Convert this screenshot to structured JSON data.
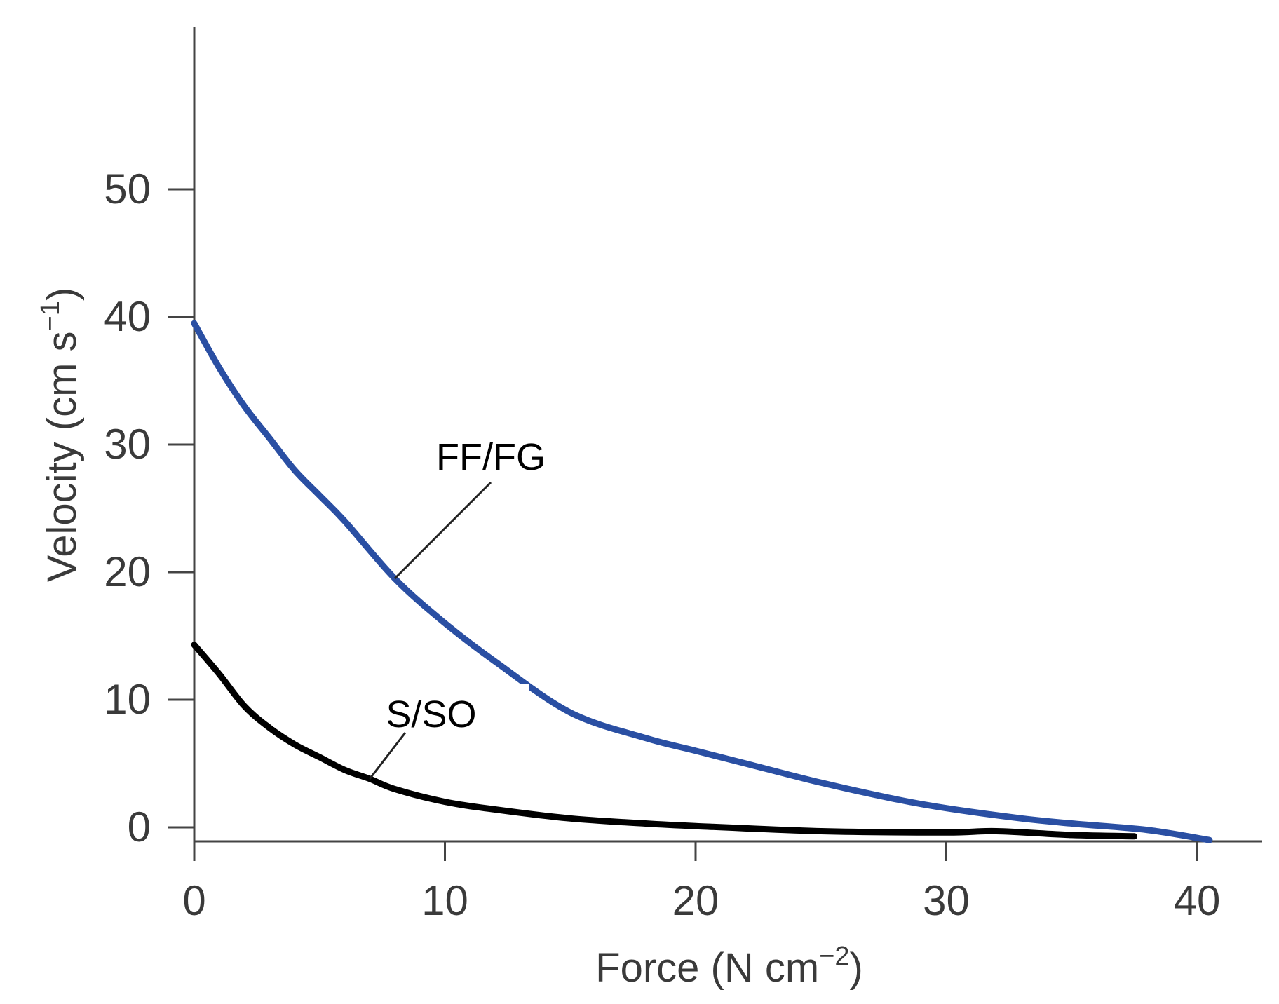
{
  "chart_data": {
    "type": "line",
    "title": "",
    "xlabel": "Force (N cm",
    "xlabel_sup": "−2",
    "xlabel_end": ")",
    "ylabel": "Velocity (cm s",
    "ylabel_sup": "−1",
    "ylabel_end": ")",
    "xlim": [
      0,
      42
    ],
    "ylim": [
      -1,
      60
    ],
    "xticks": [
      0,
      10,
      20,
      30,
      40
    ],
    "xtick_labels": [
      "0",
      "10",
      "20",
      "30",
      "40"
    ],
    "yticks": [
      0,
      10,
      20,
      30,
      40,
      50
    ],
    "ytick_labels": [
      "0",
      "10",
      "20",
      "30",
      "40",
      "50"
    ],
    "grid": false,
    "legend": "none",
    "series": [
      {
        "name": "FF/FG",
        "color": "#2a4fa3",
        "x": [
          0,
          1,
          2,
          3,
          4,
          5,
          6,
          8,
          10,
          12,
          15,
          18,
          20,
          22,
          25,
          28,
          30,
          33,
          35,
          38,
          40.5
        ],
        "y": [
          39.5,
          36,
          33,
          30.5,
          28,
          26,
          24,
          19.5,
          16,
          13,
          9,
          7,
          6,
          5,
          3.5,
          2.2,
          1.5,
          0.7,
          0.3,
          -0.2,
          -1
        ]
      },
      {
        "name": "S/SO",
        "color": "#000000",
        "x": [
          0,
          1,
          2,
          3,
          4,
          5,
          6,
          7,
          8,
          10,
          12,
          15,
          18,
          20,
          25,
          30,
          32,
          35,
          37.5
        ],
        "y": [
          14.3,
          12,
          9.5,
          7.8,
          6.5,
          5.5,
          4.5,
          3.8,
          3.0,
          2.0,
          1.4,
          0.7,
          0.3,
          0.1,
          -0.3,
          -0.4,
          -0.3,
          -0.6,
          -0.7
        ]
      }
    ],
    "annotations": [
      {
        "text": "FF/FG",
        "series": "FF/FG",
        "points_to": [
          8,
          19.5
        ]
      },
      {
        "text": "S/SO",
        "series": "S/SO",
        "points_to": [
          7,
          3.8
        ]
      }
    ]
  }
}
